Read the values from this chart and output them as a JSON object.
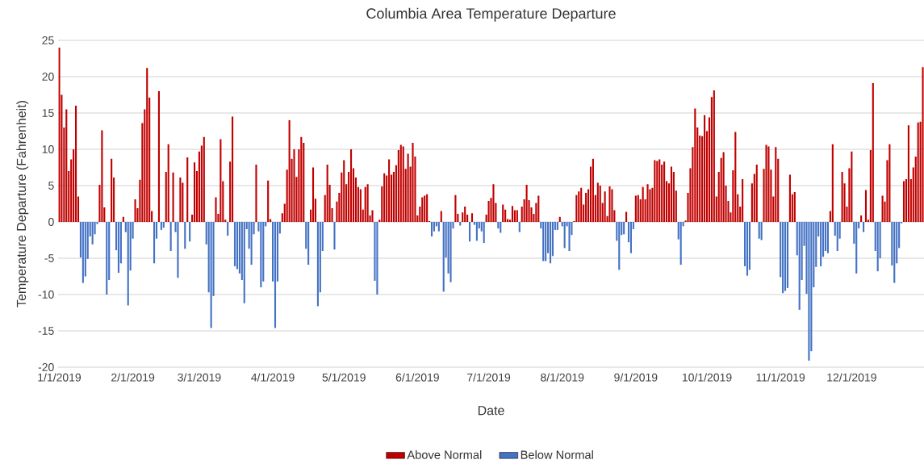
{
  "chart_data": {
    "type": "bar",
    "title": "Columbia Area Temperature Departure",
    "xlabel": "Date",
    "ylabel": "Temperature Departure (Fahrenheit)",
    "categories": [
      "1/1/2019",
      null,
      null,
      null,
      null,
      null,
      null,
      null,
      null,
      null,
      null,
      null,
      null,
      null,
      null,
      null,
      null,
      null,
      null,
      null,
      null,
      null,
      null,
      null,
      null,
      null,
      null,
      null,
      null,
      null,
      null,
      "2/1/2019",
      null,
      null,
      null,
      null,
      null,
      null,
      null,
      null,
      null,
      null,
      null,
      null,
      null,
      null,
      null,
      null,
      null,
      null,
      null,
      null,
      null,
      null,
      null,
      null,
      null,
      null,
      null,
      "3/1/2019",
      null,
      null,
      null,
      null,
      null,
      null,
      null,
      null,
      null,
      null,
      null,
      null,
      null,
      null,
      null,
      null,
      null,
      null,
      null,
      null,
      null,
      null,
      null,
      null,
      null,
      null,
      null,
      null,
      null,
      null,
      "4/1/2019",
      null,
      null,
      null,
      null,
      null,
      null,
      null,
      null,
      null,
      null,
      null,
      null,
      null,
      null,
      null,
      null,
      null,
      null,
      null,
      null,
      null,
      null,
      null,
      null,
      null,
      null,
      null,
      null,
      null,
      "5/1/2019",
      null,
      null,
      null,
      null,
      null,
      null,
      null,
      null,
      null,
      null,
      null,
      null,
      null,
      null,
      null,
      null,
      null,
      null,
      null,
      null,
      null,
      null,
      null,
      null,
      null,
      null,
      null,
      null,
      null,
      null,
      "6/1/2019",
      null,
      null,
      null,
      null,
      null,
      null,
      null,
      null,
      null,
      null,
      null,
      null,
      null,
      null,
      null,
      null,
      null,
      null,
      null,
      null,
      null,
      null,
      null,
      null,
      null,
      null,
      null,
      null,
      null,
      "7/1/2019",
      null,
      null,
      null,
      null,
      null,
      null,
      null,
      null,
      null,
      null,
      null,
      null,
      null,
      null,
      null,
      null,
      null,
      null,
      null,
      null,
      null,
      null,
      null,
      null,
      null,
      null,
      null,
      null,
      null,
      null,
      "8/1/2019",
      null,
      null,
      null,
      null,
      null,
      null,
      null,
      null,
      null,
      null,
      null,
      null,
      null,
      null,
      null,
      null,
      null,
      null,
      null,
      null,
      null,
      null,
      null,
      null,
      null,
      null,
      null,
      null,
      null,
      null,
      "9/1/2019",
      null,
      null,
      null,
      null,
      null,
      null,
      null,
      null,
      null,
      null,
      null,
      null,
      null,
      null,
      null,
      null,
      null,
      null,
      null,
      null,
      null,
      null,
      null,
      null,
      null,
      null,
      null,
      null,
      null,
      "10/1/2019",
      null,
      null,
      null,
      null,
      null,
      null,
      null,
      null,
      null,
      null,
      null,
      null,
      null,
      null,
      null,
      null,
      null,
      null,
      null,
      null,
      null,
      null,
      null,
      null,
      null,
      null,
      null,
      null,
      null,
      null,
      "11/1/2019",
      null,
      null,
      null,
      null,
      null,
      null,
      null,
      null,
      null,
      null,
      null,
      null,
      null,
      null,
      null,
      null,
      null,
      null,
      null,
      null,
      null,
      null,
      null,
      null,
      null,
      null,
      null,
      null,
      null,
      "12/1/2019",
      null,
      null,
      null,
      null,
      null,
      null,
      null,
      null,
      null,
      null,
      null,
      null,
      null,
      null,
      null,
      null,
      null,
      null,
      null,
      null,
      null,
      null,
      null,
      null,
      null,
      null,
      null,
      null,
      null,
      null
    ],
    "series": [
      {
        "name": "Above Normal",
        "color": "#c00000",
        "values": [
          24,
          17.5,
          13,
          15.5,
          7,
          8.6,
          10,
          16,
          3.5,
          null,
          null,
          null,
          null,
          null,
          null,
          null,
          null,
          5.1,
          12.6,
          2,
          null,
          null,
          8.7,
          6.1,
          null,
          null,
          null,
          0.7,
          null,
          null,
          null,
          null,
          3.1,
          1.9,
          5.8,
          13.6,
          15.5,
          21.2,
          17.1,
          1.5,
          null,
          null,
          18,
          null,
          null,
          6.9,
          10.7,
          null,
          6.8,
          null,
          null,
          6.1,
          5.4,
          null,
          8.9,
          null,
          1,
          8.2,
          7,
          9.7,
          10.5,
          11.7,
          null,
          null,
          null,
          null,
          3.4,
          1.1,
          11.4,
          5.6,
          0.3,
          null,
          8.3,
          14.5,
          null,
          null,
          null,
          null,
          null,
          null,
          null,
          null,
          null,
          7.9,
          null,
          null,
          null,
          null,
          5.7,
          0.4,
          null,
          null,
          null,
          null,
          1.2,
          2.5,
          7.2,
          14,
          8.7,
          10,
          6.2,
          10,
          11.7,
          10.9,
          null,
          null,
          1.7,
          7.5,
          3.2,
          null,
          null,
          null,
          3.7,
          7.9,
          5.1,
          1.9,
          null,
          2.8,
          4,
          6.8,
          8.5,
          5.2,
          6.9,
          10,
          7.4,
          6.1,
          4.8,
          4.5,
          1.7,
          4.8,
          5.2,
          0.9,
          1.6,
          null,
          null,
          0.3,
          4.9,
          6.7,
          6.4,
          8.6,
          6.5,
          6.9,
          7.8,
          9.9,
          10.6,
          10.4,
          7.3,
          9.4,
          7.6,
          10.9,
          9,
          0.9,
          2.1,
          3.4,
          3.6,
          3.8,
          0.1,
          null,
          null,
          null,
          null,
          1.5,
          null,
          null,
          null,
          null,
          null,
          3.7,
          1.1,
          null,
          1.3,
          2.1,
          1,
          null,
          1.2,
          null,
          null,
          null,
          null,
          null,
          1,
          2.9,
          3.3,
          5.2,
          2.6,
          null,
          null,
          2.4,
          1.7,
          0.4,
          0.3,
          2.2,
          1.6,
          1.6,
          null,
          2.1,
          3.1,
          5.1,
          3,
          2,
          1.1,
          2.6,
          3.6,
          null,
          null,
          null,
          null,
          null,
          null,
          null,
          null,
          0.7,
          null,
          null,
          null,
          null,
          null,
          0.1,
          3.7,
          4.2,
          4.7,
          2.4,
          4,
          4.5,
          7.6,
          8.7,
          3.7,
          5.4,
          5,
          2.6,
          4.2,
          0.8,
          4.9,
          4.5,
          1.6,
          null,
          null,
          null,
          null,
          1.4,
          null,
          null,
          null,
          3.6,
          3.7,
          3.1,
          4.8,
          3.1,
          5.2,
          4.5,
          4.7,
          8.5,
          8.4,
          8.6,
          7.9,
          8.3,
          5.6,
          5.3,
          7.6,
          6.9,
          4.3,
          null,
          null,
          null,
          0.2,
          4,
          7.4,
          10.3,
          15.6,
          13,
          11.9,
          11.8,
          14.7,
          12.5,
          14.4,
          17.2,
          18.1,
          3.5,
          6.9,
          8.8,
          9.6,
          5,
          2.9,
          1.3,
          7.1,
          12.4,
          3.8,
          2.1,
          5.9,
          null,
          null,
          null,
          5.3,
          6.6,
          7.9,
          null,
          null,
          7.3,
          10.6,
          10.4,
          7.2,
          3.5,
          10.3,
          8.7,
          null,
          null,
          null,
          null,
          6.5,
          3.8,
          4.1,
          null,
          null,
          null,
          null,
          null,
          null,
          null,
          null,
          null,
          null,
          null,
          null,
          null,
          null,
          1.5,
          10.7,
          null,
          null,
          null,
          6.9,
          5.3,
          2.1,
          7.4,
          9.7,
          null,
          null,
          null,
          0.9,
          null,
          4.4,
          0.3,
          9.9,
          19.1,
          null,
          null,
          null,
          3.6,
          2.8,
          8.5,
          10.7,
          null,
          null,
          null,
          null,
          null,
          5.6,
          5.9,
          13.3,
          5.9,
          7.5,
          9,
          13.7,
          13.8,
          21.3
        ]
      },
      {
        "name": "Below Normal",
        "color": "#4472c4",
        "values": [
          null,
          null,
          null,
          null,
          null,
          null,
          null,
          null,
          null,
          -4.9,
          -8.4,
          -7.5,
          -5.1,
          -2,
          -3.1,
          -1.7,
          -0.3,
          null,
          null,
          null,
          -10,
          -8,
          null,
          null,
          -3.9,
          -7,
          -5.7,
          null,
          -1.4,
          -11.5,
          -6.7,
          -2.3,
          null,
          null,
          null,
          null,
          null,
          null,
          null,
          null,
          -5.7,
          -2.3,
          null,
          -1.1,
          -0.8,
          null,
          null,
          -4,
          null,
          -1.4,
          -7.7,
          null,
          null,
          -3.7,
          null,
          -2.7,
          null,
          null,
          null,
          null,
          null,
          null,
          -3.1,
          -9.7,
          -14.6,
          -10.2,
          null,
          null,
          null,
          null,
          null,
          -1.9,
          null,
          null,
          -6.1,
          -6.5,
          -7.1,
          -8,
          -11.2,
          -1,
          -3.7,
          -5.9,
          -1.7,
          null,
          -1.3,
          -9,
          -8.2,
          -0.6,
          null,
          null,
          -8.2,
          -14.6,
          -8.2,
          -1.6,
          null,
          null,
          null,
          null,
          null,
          null,
          null,
          null,
          null,
          null,
          -3.7,
          -5.9,
          null,
          null,
          null,
          -11.6,
          -9.7,
          -4,
          null,
          null,
          null,
          null,
          -3.8,
          null,
          null,
          null,
          null,
          null,
          null,
          null,
          null,
          null,
          null,
          null,
          null,
          null,
          null,
          null,
          null,
          -8.1,
          -10,
          null,
          null,
          null,
          null,
          null,
          null,
          null,
          null,
          null,
          null,
          null,
          null,
          null,
          null,
          null,
          null,
          null,
          null,
          null,
          null,
          null,
          null,
          -2,
          -1.3,
          -0.6,
          -1.3,
          null,
          -9.6,
          -4.9,
          -7.1,
          -8.3,
          -0.9,
          null,
          null,
          -0.5,
          null,
          null,
          null,
          -2.7,
          null,
          -0.4,
          -2.6,
          -0.9,
          -1.3,
          -2.9,
          null,
          null,
          null,
          null,
          null,
          -0.9,
          -1.5,
          null,
          null,
          null,
          null,
          null,
          null,
          null,
          -1.4,
          null,
          null,
          null,
          null,
          null,
          null,
          null,
          null,
          -0.9,
          -5.4,
          -5.4,
          -4.3,
          -5.7,
          -4.7,
          -1.1,
          -1.1,
          null,
          -0.6,
          -3.6,
          -0.6,
          -4,
          -1.8,
          null,
          null,
          null,
          null,
          null,
          null,
          null,
          null,
          null,
          null,
          null,
          null,
          null,
          null,
          null,
          null,
          null,
          null,
          -2.6,
          -6.6,
          -1.8,
          -1.7,
          null,
          -2.8,
          -4.3,
          -1,
          null,
          null,
          null,
          null,
          null,
          null,
          null,
          null,
          null,
          null,
          null,
          null,
          null,
          null,
          null,
          null,
          null,
          null,
          -2.4,
          -5.9,
          -0.6,
          null,
          null,
          null,
          null,
          null,
          null,
          null,
          null,
          null,
          null,
          null,
          null,
          null,
          null,
          null,
          null,
          null,
          null,
          null,
          null,
          null,
          null,
          null,
          null,
          null,
          -6.1,
          -7.4,
          -6.6,
          null,
          null,
          null,
          -2.3,
          -2.5,
          null,
          null,
          null,
          null,
          null,
          null,
          null,
          -7.6,
          -9.8,
          -9.5,
          -9.1,
          null,
          null,
          null,
          -4.6,
          -12.1,
          -8,
          -3.3,
          -9.9,
          -19.1,
          -17.8,
          -9,
          -6.2,
          -2,
          -6.1,
          -4.8,
          -4,
          -4.3,
          null,
          null,
          -1.9,
          -4,
          -2.3,
          null,
          null,
          null,
          null,
          null,
          -3,
          -7.1,
          -0.9,
          null,
          -1.4,
          null,
          null,
          null,
          null,
          -4,
          -6.8,
          -5,
          null,
          null,
          null,
          null,
          -6,
          -8.4,
          -5.7,
          -3.6,
          -0.2,
          null,
          null,
          null,
          null,
          null,
          null,
          null,
          null,
          null
        ]
      }
    ],
    "ylim": [
      -20,
      25
    ],
    "yticks": [
      -20,
      -15,
      -10,
      -5,
      0,
      5,
      10,
      15,
      20,
      25
    ],
    "grid": "y",
    "legend": "bottom"
  }
}
